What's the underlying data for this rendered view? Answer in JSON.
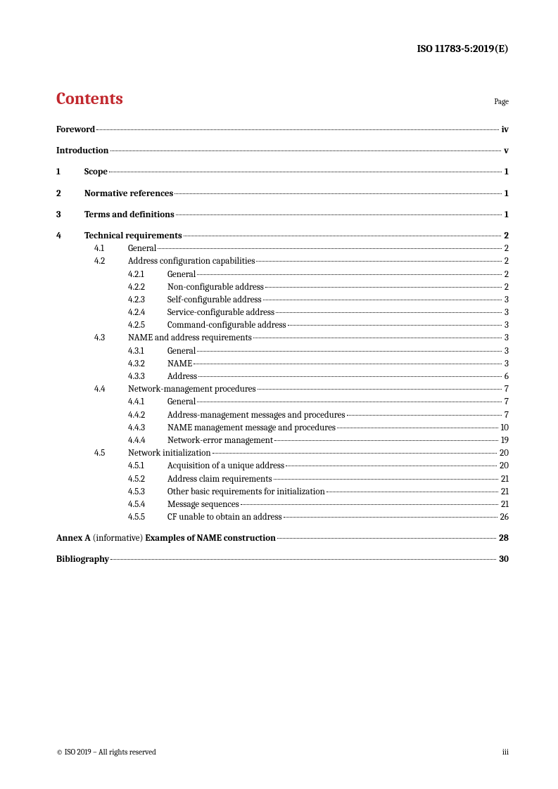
{
  "header": {
    "doc_id": "ISO 11783-5:2019(E)"
  },
  "contents": {
    "title": "Contents",
    "page_label": "Page"
  },
  "toc": [
    {
      "level": 0,
      "num": "",
      "title": "Foreword",
      "page": "iv",
      "bold": true,
      "gap_before": false
    },
    {
      "level": 0,
      "num": "",
      "title": "Introduction",
      "page": "v",
      "bold": true,
      "gap_before": true
    },
    {
      "level": 0,
      "num": "1",
      "title": "Scope",
      "page": "1",
      "bold": true,
      "gap_before": true
    },
    {
      "level": 0,
      "num": "2",
      "title": "Normative references",
      "page": "1",
      "bold": true,
      "gap_before": true
    },
    {
      "level": 0,
      "num": "3",
      "title": "Terms and definitions",
      "page": "1",
      "bold": true,
      "gap_before": true
    },
    {
      "level": 0,
      "num": "4",
      "title": "Technical requirements",
      "page": "2",
      "bold": true,
      "gap_before": true
    },
    {
      "level": 1,
      "num": "4.1",
      "title": "General",
      "page": "2",
      "bold": false
    },
    {
      "level": 1,
      "num": "4.2",
      "title": "Address configuration capabilities",
      "page": "2",
      "bold": false
    },
    {
      "level": 2,
      "num": "4.2.1",
      "title": "General",
      "page": "2",
      "bold": false
    },
    {
      "level": 2,
      "num": "4.2.2",
      "title": "Non-configurable address",
      "page": "2",
      "bold": false
    },
    {
      "level": 2,
      "num": "4.2.3",
      "title": "Self-configurable address",
      "page": "3",
      "bold": false
    },
    {
      "level": 2,
      "num": "4.2.4",
      "title": "Service-configurable address",
      "page": "3",
      "bold": false
    },
    {
      "level": 2,
      "num": "4.2.5",
      "title": "Command-configurable address",
      "page": "3",
      "bold": false
    },
    {
      "level": 1,
      "num": "4.3",
      "title": "NAME and address requirements",
      "page": "3",
      "bold": false
    },
    {
      "level": 2,
      "num": "4.3.1",
      "title": "General",
      "page": "3",
      "bold": false
    },
    {
      "level": 2,
      "num": "4.3.2",
      "title": "NAME",
      "page": "3",
      "bold": false
    },
    {
      "level": 2,
      "num": "4.3.3",
      "title": "Address",
      "page": "6",
      "bold": false
    },
    {
      "level": 1,
      "num": "4.4",
      "title": "Network-management procedures",
      "page": "7",
      "bold": false
    },
    {
      "level": 2,
      "num": "4.4.1",
      "title": "General",
      "page": "7",
      "bold": false
    },
    {
      "level": 2,
      "num": "4.4.2",
      "title": "Address-management messages and procedures",
      "page": "7",
      "bold": false
    },
    {
      "level": 2,
      "num": "4.4.3",
      "title": "NAME management message and procedures",
      "page": "10",
      "bold": false
    },
    {
      "level": 2,
      "num": "4.4.4",
      "title": "Network-error management",
      "page": "19",
      "bold": false
    },
    {
      "level": 1,
      "num": "4.5",
      "title": "Network initialization",
      "page": "20",
      "bold": false
    },
    {
      "level": 2,
      "num": "4.5.1",
      "title": "Acquisition of a unique address",
      "page": "20",
      "bold": false
    },
    {
      "level": 2,
      "num": "4.5.2",
      "title": "Address claim requirements",
      "page": "21",
      "bold": false
    },
    {
      "level": 2,
      "num": "4.5.3",
      "title": "Other basic requirements for initialization",
      "page": "21",
      "bold": false
    },
    {
      "level": 2,
      "num": "4.5.4",
      "title": "Message sequences",
      "page": "21",
      "bold": false
    },
    {
      "level": 2,
      "num": "4.5.5",
      "title": "CF unable to obtain an address",
      "page": "26",
      "bold": false
    },
    {
      "level": 0,
      "num": "",
      "title_parts": [
        "Annex A ",
        "(informative) ",
        "Examples of NAME construction"
      ],
      "title_bold_mask": [
        true,
        false,
        true
      ],
      "page": "28",
      "bold": true,
      "gap_before": true
    },
    {
      "level": 0,
      "num": "",
      "title": "Bibliography",
      "page": "30",
      "bold": true,
      "gap_before": true
    }
  ],
  "footer": {
    "copyright": "© ISO 2019 – All rights reserved",
    "page_number": "iii"
  }
}
